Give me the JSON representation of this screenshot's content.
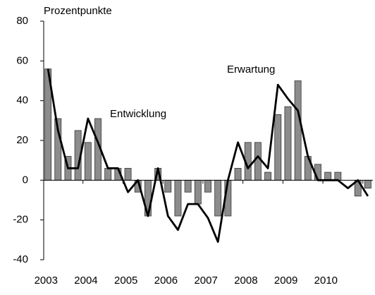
{
  "chart_data": {
    "type": "bar_line",
    "y_label": "Prozentpunkte",
    "categories": [
      "2003",
      null,
      null,
      null,
      "2004",
      null,
      null,
      null,
      "2005",
      null,
      null,
      null,
      "2006",
      null,
      null,
      null,
      "2007",
      null,
      null,
      null,
      "2008",
      null,
      null,
      null,
      "2009",
      null,
      null,
      null,
      "2010",
      null,
      null,
      null,
      null
    ],
    "series": [
      {
        "name": "Entwicklung",
        "type": "bar",
        "color": "#8c8c8c",
        "values": [
          56,
          31,
          12,
          25,
          19,
          31,
          6,
          6,
          6,
          -6,
          -18,
          6,
          -6,
          -18,
          -6,
          -12,
          -6,
          -18,
          -18,
          6,
          19,
          19,
          4,
          33,
          37,
          50,
          12,
          8,
          4,
          4,
          0,
          -8,
          -4
        ]
      },
      {
        "name": "Erwartung",
        "type": "line",
        "color": "#000000",
        "values": [
          56,
          25,
          6,
          6,
          31,
          19,
          6,
          6,
          -6,
          0,
          -18,
          6,
          -18,
          -25,
          -12,
          -12,
          -19,
          -31,
          0,
          19,
          6,
          12,
          6,
          48,
          41,
          35,
          12,
          0,
          0,
          0,
          -4,
          0,
          -8
        ]
      }
    ],
    "ylim": [
      -40,
      80
    ],
    "yticks": [
      -40,
      -20,
      0,
      20,
      40,
      60,
      80
    ],
    "grid": false
  }
}
